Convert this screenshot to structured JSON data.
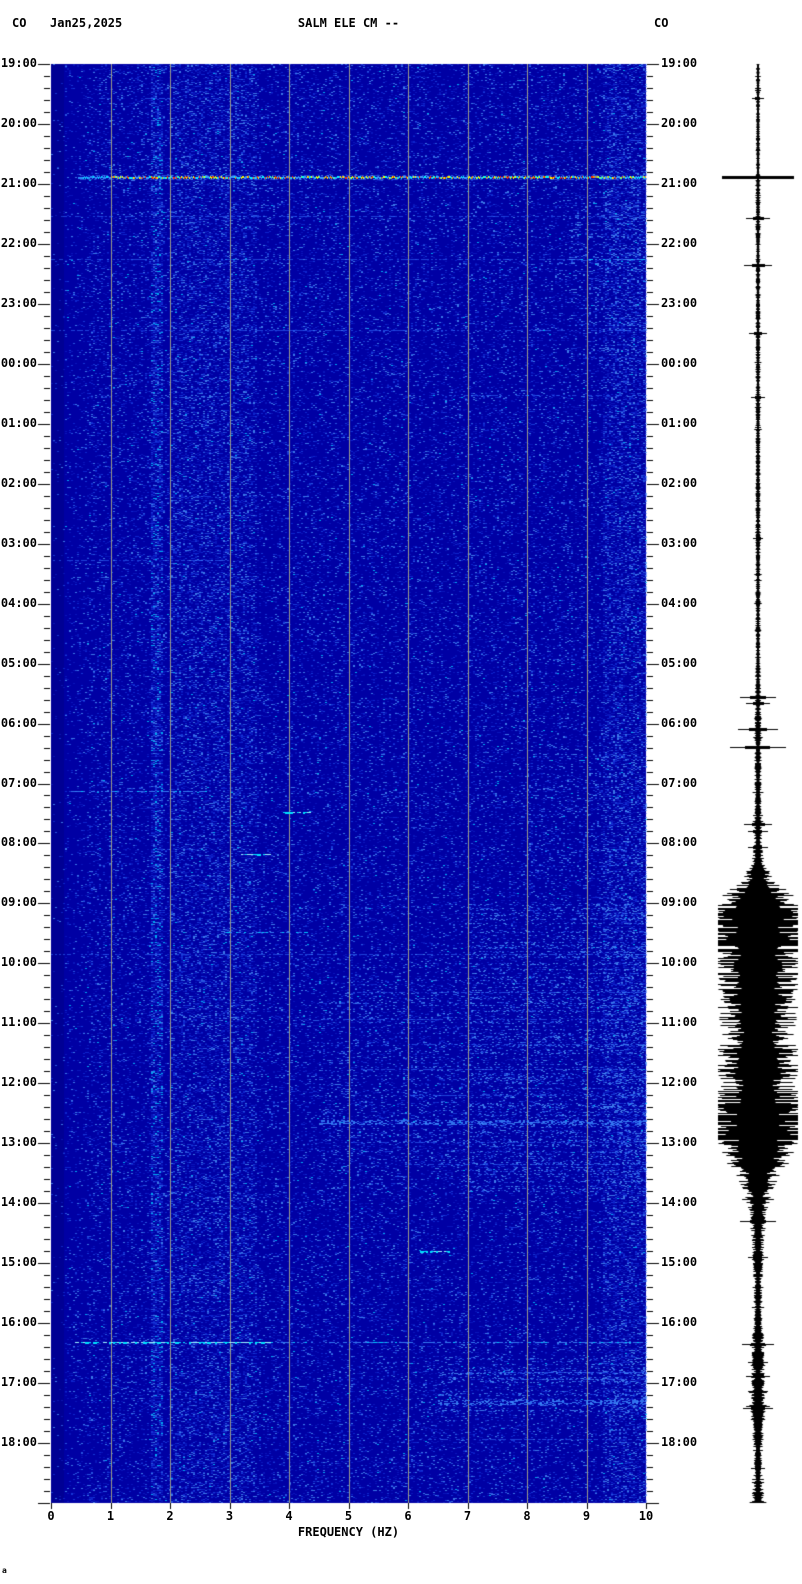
{
  "header": {
    "network_left": "CO",
    "date": "Jan25,2025",
    "title": "SALM ELE CM --",
    "network_right": "CO"
  },
  "artifact": "a",
  "chart_data": {
    "type": "heatmap",
    "subtype": "seismic-spectrogram-with-helicorder-trace",
    "title": "SALM ELE CM --",
    "date": "Jan25,2025",
    "network": "CO",
    "xlabel": "FREQUENCY (HZ)",
    "xlim": [
      0,
      10
    ],
    "x_ticks": [
      "0",
      "1",
      "2",
      "3",
      "4",
      "5",
      "6",
      "7",
      "8",
      "9",
      "10"
    ],
    "time_start": "19:00",
    "time_end": "19:00 (+1 day)",
    "minor_ticks_per_hour": 4,
    "time_labels": [
      "19:00",
      "20:00",
      "21:00",
      "22:00",
      "23:00",
      "00:00",
      "01:00",
      "02:00",
      "03:00",
      "04:00",
      "05:00",
      "06:00",
      "07:00",
      "08:00",
      "09:00",
      "10:00",
      "11:00",
      "12:00",
      "13:00",
      "14:00",
      "15:00",
      "16:00",
      "17:00",
      "18:00"
    ],
    "colors": {
      "page": "#FFFFFF",
      "bg": "#0000A4",
      "bg_dark": "#000094",
      "grid": "#9A9A8A",
      "trace": "#000000",
      "tick": "#000000"
    },
    "noise_base": 0.17,
    "vertical_bands": [
      {
        "f0": 0.0,
        "f1": 0.22,
        "density": 0.02
      },
      {
        "f0": 0.22,
        "f1": 0.6,
        "density": 0.1
      },
      {
        "f0": 1.68,
        "f1": 1.88,
        "density": 0.55
      },
      {
        "f0": 2.0,
        "f1": 3.45,
        "density": 0.34
      },
      {
        "f0": 9.25,
        "f1": 10.0,
        "density": 0.4
      }
    ],
    "texture_zones": [
      {
        "t0": "09:00",
        "t1": "13:50",
        "f0": 7.0,
        "f1": 10.0,
        "density": 0.1
      },
      {
        "t0": "10:15",
        "t1": "13:45",
        "f0": 4.5,
        "f1": 7.0,
        "density": 0.05
      },
      {
        "t0": "16:35",
        "t1": "17:32",
        "f0": 6.5,
        "f1": 10.0,
        "density": 0.1
      },
      {
        "t0": "21:20",
        "t1": "23:59",
        "f0": 8.7,
        "f1": 10.0,
        "density": 0.07
      },
      {
        "t0": "06:30",
        "t1": "08:30",
        "f0": 8.0,
        "f1": 10.0,
        "density": 0.05
      }
    ],
    "spectrogram_events": [
      {
        "time": "19:34",
        "f0": 0.8,
        "f1": 2.0,
        "level": "faint"
      },
      {
        "time": "20:16",
        "f0": 8.5,
        "f1": 10.0,
        "level": "faint"
      },
      {
        "time": "20:53",
        "f0": 0.45,
        "f1": 10.0,
        "level": "strong"
      },
      {
        "time": "21:32",
        "f0": 0.0,
        "f1": 10.0,
        "level": "faint"
      },
      {
        "time": "22:15",
        "f0": 0.0,
        "f1": 10.0,
        "level": "faint"
      },
      {
        "time": "22:15",
        "f0": 8.7,
        "f1": 10.0,
        "level": "medium"
      },
      {
        "time": "23:26",
        "f0": 0.0,
        "f1": 10.0,
        "level": "faint"
      },
      {
        "time": "00:31",
        "f0": 6.5,
        "f1": 10.0,
        "level": "faint"
      },
      {
        "time": "03:16",
        "f0": 0.0,
        "f1": 3.0,
        "level": "faint"
      },
      {
        "time": "07:08",
        "f0": 0.3,
        "f1": 2.6,
        "level": "medium"
      },
      {
        "time": "07:29",
        "f0": 3.9,
        "f1": 4.4,
        "level": "cyan"
      },
      {
        "time": "08:11",
        "f0": 3.2,
        "f1": 3.7,
        "level": "cyan"
      },
      {
        "time": "09:29",
        "f0": 2.9,
        "f1": 4.3,
        "level": "medium"
      },
      {
        "time": "09:51",
        "f0": 0.0,
        "f1": 10.0,
        "level": "faint"
      },
      {
        "time": "10:29",
        "f0": 5.0,
        "f1": 10.0,
        "level": "faint"
      },
      {
        "time": "10:56",
        "f0": 4.5,
        "f1": 10.0,
        "level": "faint"
      },
      {
        "time": "11:21",
        "f0": 6.0,
        "f1": 10.0,
        "level": "faint"
      },
      {
        "time": "11:46",
        "f0": 5.0,
        "f1": 10.0,
        "level": "faint"
      },
      {
        "time": "12:12",
        "f0": 6.0,
        "f1": 10.0,
        "level": "faint"
      },
      {
        "time": "12:39",
        "f0": 4.5,
        "f1": 10.0,
        "level": "medium-band"
      },
      {
        "time": "12:59",
        "f0": 5.0,
        "f1": 10.0,
        "level": "faint"
      },
      {
        "time": "13:21",
        "f0": 6.0,
        "f1": 10.0,
        "level": "faint"
      },
      {
        "time": "14:48",
        "f0": 6.2,
        "f1": 6.7,
        "level": "cyan"
      },
      {
        "time": "15:26",
        "f0": 6.2,
        "f1": 6.5,
        "level": "faint"
      },
      {
        "time": "16:19",
        "f0": 0.4,
        "f1": 3.7,
        "level": "bright-cyan"
      },
      {
        "time": "16:19",
        "f0": 3.7,
        "f1": 10.0,
        "level": "medium"
      },
      {
        "time": "16:49",
        "f0": 7.0,
        "f1": 10.0,
        "level": "faint"
      },
      {
        "time": "16:56",
        "f0": 7.5,
        "f1": 10.0,
        "level": "faint"
      },
      {
        "time": "17:19",
        "f0": 6.5,
        "f1": 10.0,
        "level": "medium-band"
      },
      {
        "time": "17:56",
        "f0": 6.0,
        "f1": 10.0,
        "level": "faint"
      }
    ],
    "seismogram": {
      "marker": {
        "time": "20:53",
        "half_width": 36
      },
      "spikes": [
        {
          "time": "19:34",
          "amp": 6
        },
        {
          "time": "21:34",
          "amp": 12
        },
        {
          "time": "22:21",
          "amp": 14
        },
        {
          "time": "23:29",
          "amp": 9
        },
        {
          "time": "00:33",
          "amp": 7
        },
        {
          "time": "02:54",
          "amp": 5
        },
        {
          "time": "05:33",
          "amp": 18
        },
        {
          "time": "05:39",
          "amp": 12
        },
        {
          "time": "06:05",
          "amp": 20
        },
        {
          "time": "06:23",
          "amp": 28
        },
        {
          "time": "07:41",
          "amp": 14
        },
        {
          "time": "07:48",
          "amp": 10
        },
        {
          "time": "08:04",
          "amp": 10
        },
        {
          "time": "14:18",
          "amp": 18
        },
        {
          "time": "14:54",
          "amp": 10
        },
        {
          "time": "16:21",
          "amp": 16
        },
        {
          "time": "16:39",
          "amp": 10
        },
        {
          "time": "16:53",
          "amp": 12
        },
        {
          "time": "17:25",
          "amp": 15
        },
        {
          "time": "18:25",
          "amp": 7
        },
        {
          "time": "18:50",
          "amp": 6
        }
      ],
      "envelope": [
        [
          0,
          1.5
        ],
        [
          1.8,
          1.5
        ],
        [
          2.0,
          2
        ],
        [
          4,
          1.8
        ],
        [
          7,
          1.8
        ],
        [
          10,
          2
        ],
        [
          10.6,
          2.2
        ],
        [
          11.2,
          2.6
        ],
        [
          12,
          2.6
        ],
        [
          12.8,
          3
        ],
        [
          13.2,
          4
        ],
        [
          13.45,
          7
        ],
        [
          13.65,
          13
        ],
        [
          13.85,
          26
        ],
        [
          14.05,
          38
        ],
        [
          14.35,
          40
        ],
        [
          14.65,
          36
        ],
        [
          14.95,
          31
        ],
        [
          15.25,
          35
        ],
        [
          15.55,
          28
        ],
        [
          15.85,
          32
        ],
        [
          16.15,
          26
        ],
        [
          16.45,
          31
        ],
        [
          16.75,
          33
        ],
        [
          17.05,
          28
        ],
        [
          17.35,
          36
        ],
        [
          17.6,
          40
        ],
        [
          17.9,
          40
        ],
        [
          18.1,
          32
        ],
        [
          18.35,
          22
        ],
        [
          18.6,
          14
        ],
        [
          18.9,
          9
        ],
        [
          19.2,
          6.5
        ],
        [
          19.5,
          5
        ],
        [
          19.9,
          4
        ],
        [
          20.4,
          3
        ],
        [
          21,
          3.5
        ],
        [
          21.4,
          5
        ],
        [
          21.8,
          4.5
        ],
        [
          22.1,
          6
        ],
        [
          22.4,
          7
        ],
        [
          22.7,
          5
        ],
        [
          23.1,
          3.5
        ],
        [
          23.5,
          3
        ],
        [
          23.8,
          4
        ],
        [
          24,
          4.5
        ]
      ]
    }
  }
}
